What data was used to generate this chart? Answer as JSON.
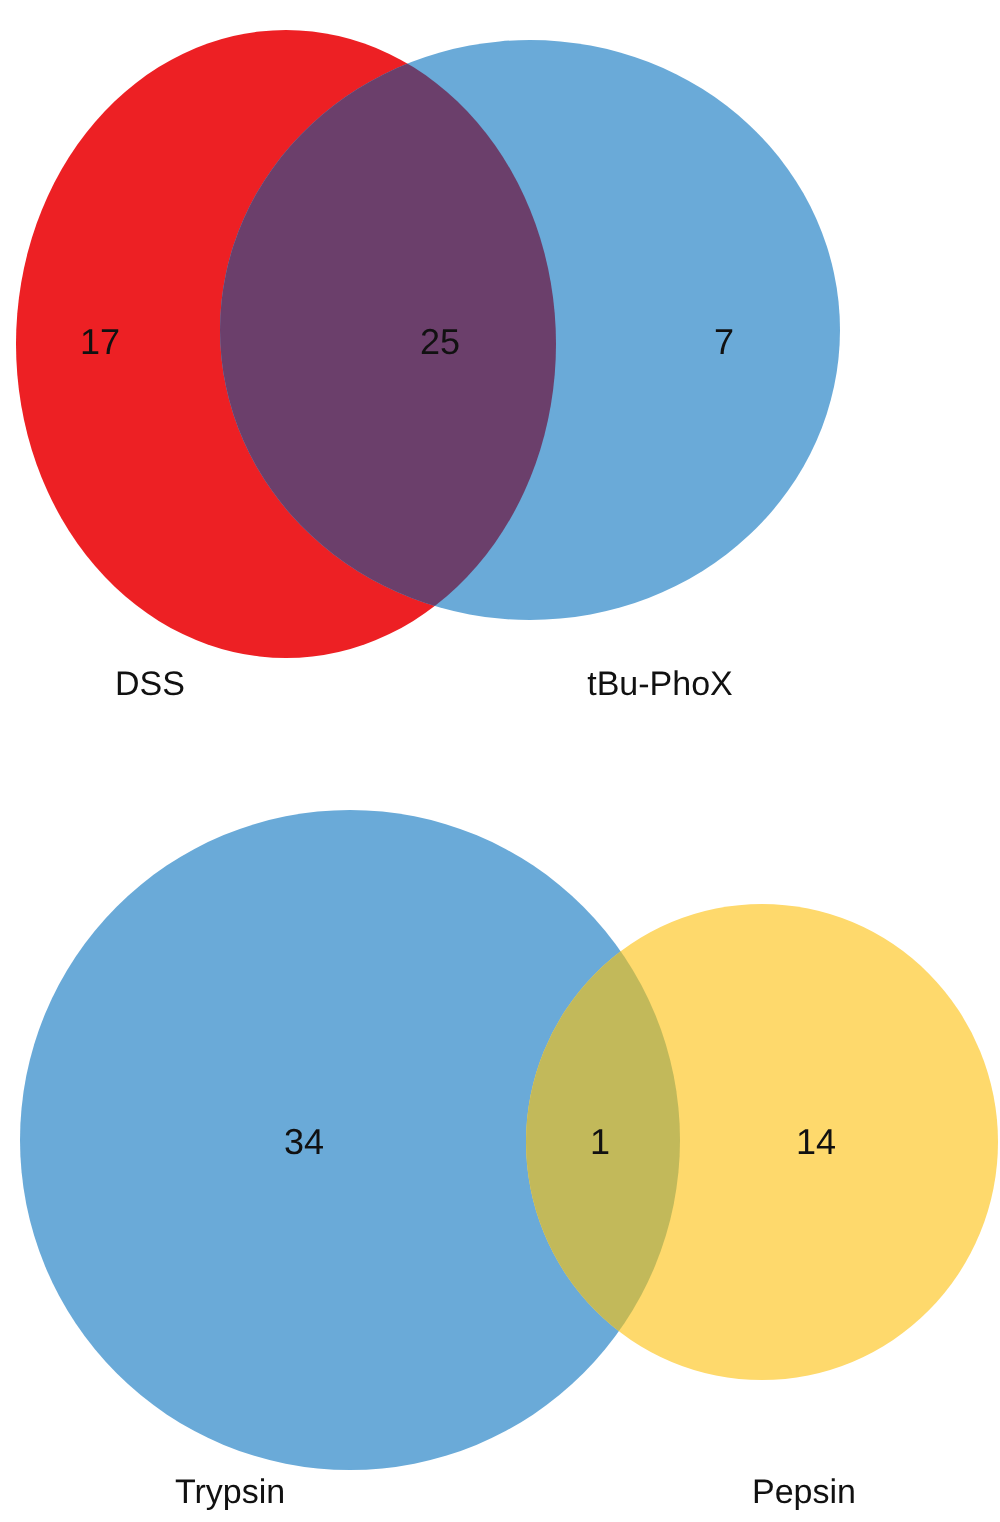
{
  "chart_data": [
    {
      "type": "other",
      "categories": [
        "DSS",
        null,
        "tBu-PhoX"
      ],
      "values": [
        17,
        25,
        7
      ],
      "data_labels": true,
      "colors": [
        "#ed2024",
        "#6b3f6b",
        "#6aaad8"
      ]
    },
    {
      "type": "other",
      "categories": [
        "Trypsin",
        null,
        "Pepsin"
      ],
      "values": [
        34,
        1,
        14
      ],
      "data_labels": true,
      "colors": [
        "#6aaad8",
        "#c2b95a",
        "#fed96c"
      ]
    }
  ]
}
